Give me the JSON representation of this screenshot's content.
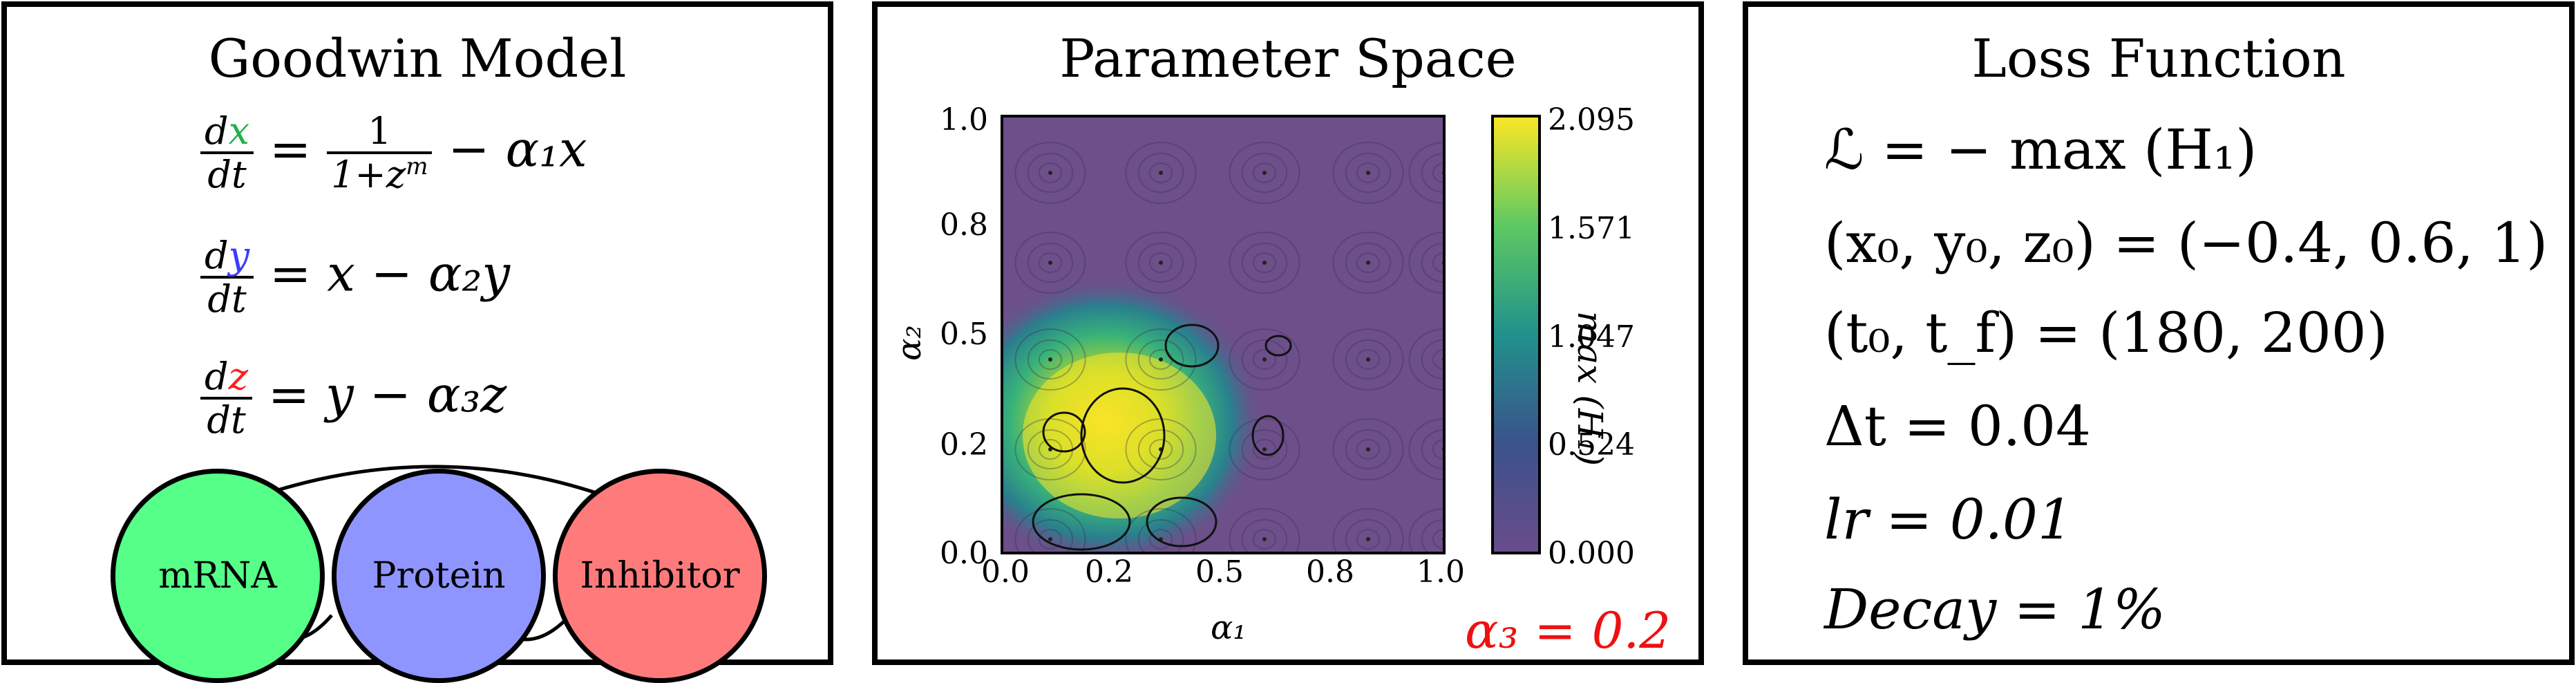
{
  "goodwin": {
    "title": "Goodwin Model",
    "eq1": {
      "d_num": "d",
      "var": "x",
      "var_color": "#22b14c",
      "dt": "dt",
      "rhs_frac_num": "1",
      "rhs_frac_den": "1+z",
      "rhs_exp": "m",
      "rhs_tail": "− α₁x"
    },
    "eq2": {
      "d_num": "d",
      "var": "y",
      "var_color": "#3b3bff",
      "dt": "dt",
      "rhs": "= x − α₂y"
    },
    "eq3": {
      "d_num": "d",
      "var": "z",
      "var_color": "#ff2020",
      "dt": "dt",
      "rhs": "= y − α₃z"
    },
    "nodes": [
      {
        "label": "mRNA",
        "color": "#55ff88"
      },
      {
        "label": "Protein",
        "color": "#8f95ff"
      },
      {
        "label": "Inhibitor",
        "color": "#ff7b7b"
      }
    ]
  },
  "param": {
    "title": "Parameter Space",
    "xlabel": "α₁",
    "ylabel": "α₂",
    "cbar_label": "max (H₁)",
    "x_ticks": [
      "0.0",
      "0.2",
      "0.5",
      "0.8",
      "1.0"
    ],
    "y_ticks": [
      "1.0",
      "0.8",
      "0.5",
      "0.2",
      "0.0"
    ],
    "cbar_ticks": [
      "2.095",
      "1.571",
      "1.047",
      "0.524",
      "0.000"
    ],
    "annotation": "α₃ = 0.2",
    "annotation_color": "#ee1111",
    "colormap": "viridis"
  },
  "loss": {
    "title": "Loss Function",
    "lines": [
      "ℒ = − max (H₁)",
      "(x₀, y₀, z₀) = (−0.4, 0.6, 1)",
      "(t₀, t_f) = (180, 200)",
      "Δt = 0.04",
      "lr = 0.01",
      "Decay = 1%"
    ]
  }
}
